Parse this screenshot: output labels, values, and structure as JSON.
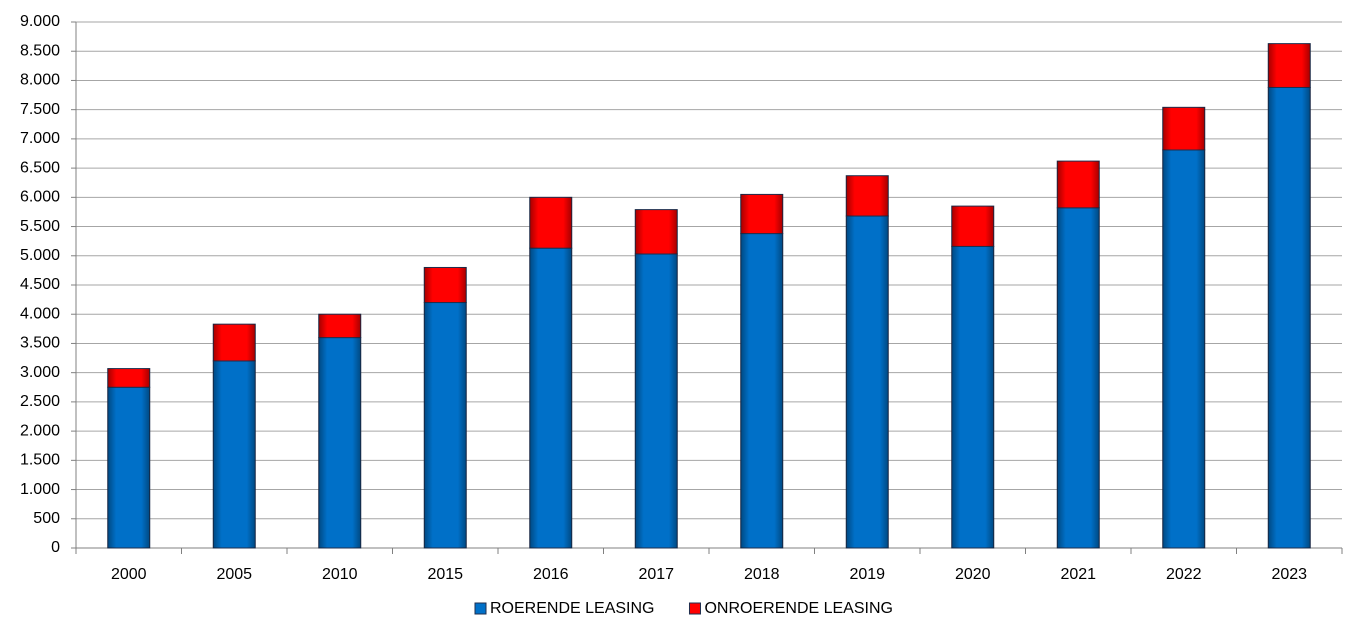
{
  "chart_data": {
    "type": "stacked_bar",
    "categories": [
      "2000",
      "2005",
      "2010",
      "2015",
      "2016",
      "2017",
      "2018",
      "2019",
      "2020",
      "2021",
      "2022",
      "2023"
    ],
    "series": [
      {
        "name": "ROERENDE LEASING",
        "color": "#0070c8",
        "values": [
          2750,
          3200,
          3600,
          4200,
          5130,
          5030,
          5380,
          5680,
          5160,
          5820,
          6810,
          7880
        ]
      },
      {
        "name": "ONROERENDE LEASING",
        "color": "#ff0000",
        "values": [
          320,
          630,
          400,
          600,
          870,
          760,
          670,
          690,
          690,
          800,
          730,
          750
        ]
      }
    ],
    "ylim": [
      0,
      9000
    ],
    "yticks": [
      0,
      500,
      {
        "value": 1000,
        "label": "1.000"
      },
      {
        "value": 1500,
        "label": "1.500"
      },
      {
        "value": 2000,
        "label": "2.000"
      },
      {
        "value": 2500,
        "label": "2.500"
      },
      {
        "value": 3000,
        "label": "3.000"
      },
      {
        "value": 3500,
        "label": "3.500"
      },
      {
        "value": 4000,
        "label": "4.000"
      },
      {
        "value": 4500,
        "label": "4.500"
      },
      {
        "value": 5000,
        "label": "5.000"
      },
      {
        "value": 5500,
        "label": "5.500"
      },
      {
        "value": 6000,
        "label": "6.000"
      },
      {
        "value": 6500,
        "label": "6.500"
      },
      {
        "value": 7000,
        "label": "7.000"
      },
      {
        "value": 7500,
        "label": "7.500"
      },
      {
        "value": 8000,
        "label": "8.000"
      },
      {
        "value": 8500,
        "label": "8.500"
      },
      {
        "value": 9000,
        "label": "9.000"
      }
    ],
    "grid": true,
    "legend": "bottom"
  }
}
